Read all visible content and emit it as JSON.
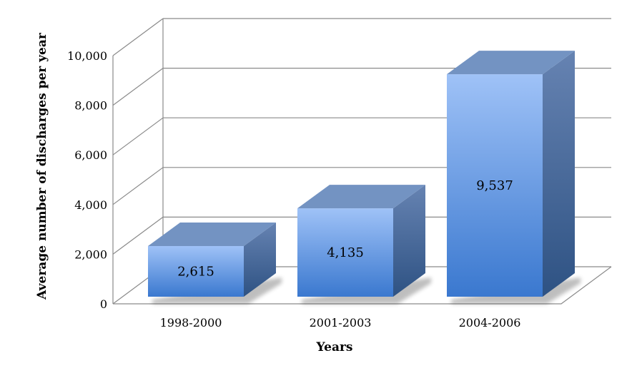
{
  "chart_data": {
    "type": "bar",
    "title": "",
    "xlabel": "Years",
    "ylabel": "Average number of discharges per year",
    "categories": [
      "1998-2000",
      "2001-2003",
      "2004-2006"
    ],
    "values": [
      2615,
      4135,
      9537
    ],
    "value_labels": [
      "2,615",
      "4,135",
      "9,537"
    ],
    "yticks": [
      "0",
      "2,000",
      "4,000",
      "6,000",
      "8,000",
      "10,000"
    ],
    "ylim": [
      0,
      10000
    ],
    "grid": true,
    "legend": "none",
    "three_d": true,
    "colors": {
      "bar_top": "#9FC2F7",
      "bar_bottom": "#3A78CF",
      "bar_cap": "#7393C2",
      "bar_side_light": "#6683B2",
      "bar_side_dark": "#2E5283",
      "gridline": "#8A8A8A"
    }
  }
}
